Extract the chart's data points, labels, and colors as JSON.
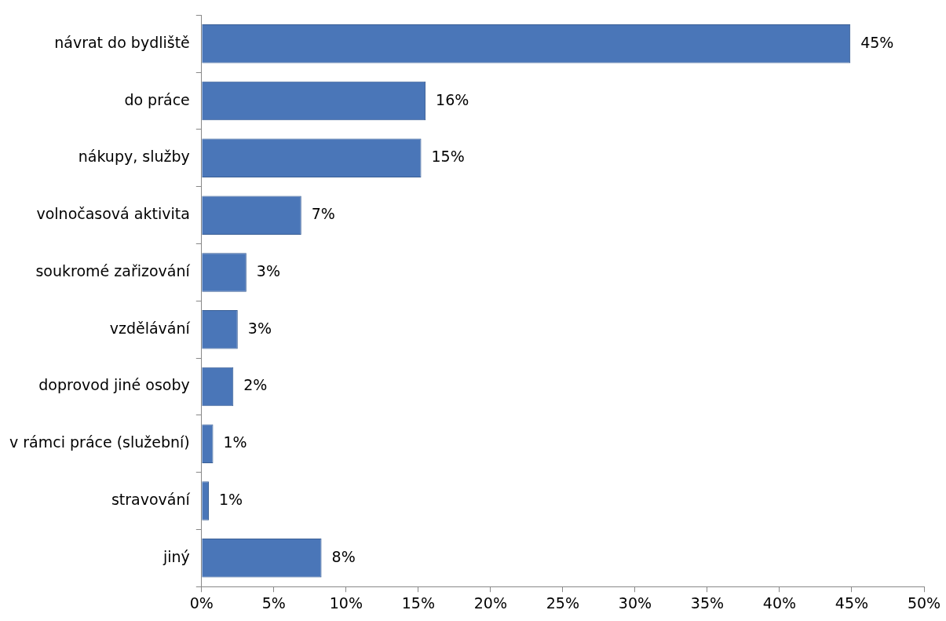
{
  "chart_data": {
    "type": "bar",
    "orientation": "horizontal",
    "categories": [
      "návrat do bydliště",
      "do práce",
      "nákupy, služby",
      "volnočasová aktivita",
      "soukromé zařizování",
      "vzdělávání",
      "doprovod jiné osoby",
      "v rámci práce (služební)",
      "stravování",
      "jiný"
    ],
    "values": [
      44.9,
      15.5,
      15.2,
      6.9,
      3.1,
      2.5,
      2.2,
      0.8,
      0.5,
      8.3
    ],
    "value_labels": [
      "45%",
      "16%",
      "15%",
      "7%",
      "3%",
      "3%",
      "2%",
      "1%",
      "1%",
      "8%"
    ],
    "color": "#4a76b8",
    "xlim": [
      0,
      50
    ],
    "xticks": [
      {
        "value": 0,
        "label": "0%"
      },
      {
        "value": 5,
        "label": "5%"
      },
      {
        "value": 10,
        "label": "10%"
      },
      {
        "value": 15,
        "label": "15%"
      },
      {
        "value": 20,
        "label": "20%"
      },
      {
        "value": 25,
        "label": "25%"
      },
      {
        "value": 30,
        "label": "30%"
      },
      {
        "value": 35,
        "label": "35%"
      },
      {
        "value": 40,
        "label": "40%"
      },
      {
        "value": 45,
        "label": "45%"
      },
      {
        "value": 50,
        "label": "50%"
      }
    ],
    "grid": false,
    "legend": false
  }
}
